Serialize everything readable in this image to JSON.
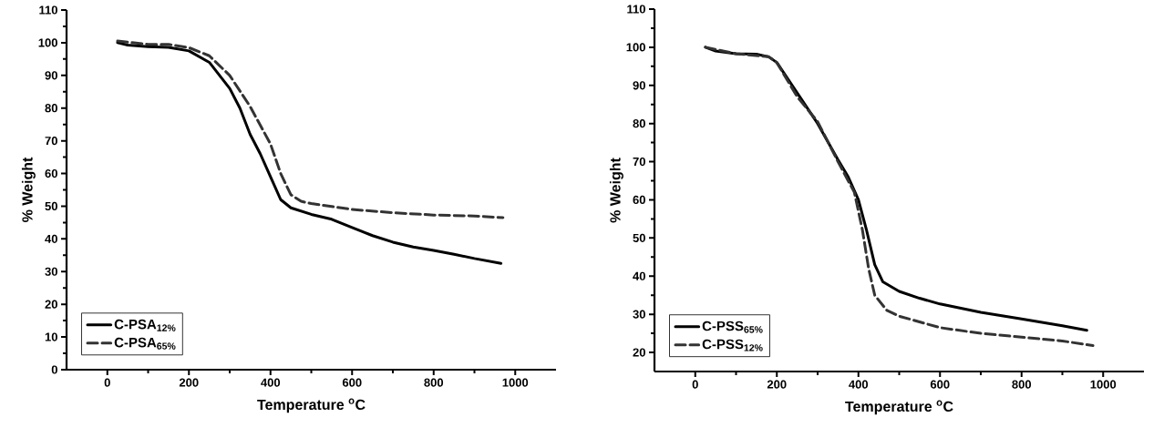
{
  "chart_data": [
    {
      "type": "line",
      "xlabel": "Temperature $^{o}$C",
      "ylabel": "% Weight",
      "xlim": [
        -100,
        1100
      ],
      "ylim": [
        0,
        110
      ],
      "xticks": [
        0,
        200,
        400,
        600,
        800,
        1000
      ],
      "yticks": [
        0,
        10,
        20,
        30,
        40,
        50,
        60,
        70,
        80,
        90,
        100,
        110
      ],
      "legend": "bottom left",
      "series": [
        {
          "name": "C-PSA$_{12%}$",
          "color": "#000000",
          "line_style": "solid",
          "x": [
            25,
            50,
            100,
            150,
            200,
            250,
            300,
            325,
            350,
            375,
            400,
            425,
            450,
            500,
            550,
            600,
            650,
            700,
            750,
            800,
            850,
            900,
            965
          ],
          "values": [
            100,
            99.3,
            98.8,
            98.6,
            97.5,
            94,
            86,
            80,
            72,
            66,
            59,
            52,
            49.5,
            47.5,
            46,
            43.5,
            41,
            39,
            37.5,
            36.5,
            35.3,
            34,
            32.5
          ]
        },
        {
          "name": "C-PSA$_{65%}$",
          "color": "#333333",
          "line_style": "dashed",
          "x": [
            25,
            100,
            150,
            200,
            250,
            300,
            350,
            400,
            425,
            450,
            475,
            500,
            600,
            700,
            800,
            900,
            970
          ],
          "values": [
            100.5,
            99.5,
            99.5,
            98.5,
            96,
            90,
            80.5,
            69,
            60,
            53.5,
            51.5,
            50.8,
            49,
            48,
            47.3,
            47,
            46.5
          ]
        }
      ]
    },
    {
      "type": "line",
      "xlabel": "Temperature $^{o}$C",
      "ylabel": "% Weight",
      "xlim": [
        -100,
        1100
      ],
      "ylim": [
        15,
        110
      ],
      "xticks": [
        0,
        200,
        400,
        600,
        800,
        1000
      ],
      "yticks": [
        20,
        30,
        40,
        50,
        60,
        70,
        80,
        90,
        100,
        110
      ],
      "legend": "bottom left",
      "series": [
        {
          "name": "C-PSS$_{65%}$",
          "color": "#000000",
          "line_style": "solid",
          "x": [
            25,
            50,
            100,
            150,
            180,
            200,
            250,
            300,
            350,
            375,
            400,
            420,
            440,
            460,
            500,
            550,
            600,
            700,
            800,
            900,
            960
          ],
          "values": [
            100,
            99,
            98.3,
            98.2,
            97.5,
            96,
            88,
            80,
            70.5,
            66,
            60,
            52,
            43,
            38.5,
            36,
            34.2,
            32.7,
            30.5,
            28.8,
            27,
            25.8
          ]
        },
        {
          "name": "C-PSS$_{12%}$",
          "color": "#333333",
          "line_style": "dashed",
          "x": [
            25,
            100,
            180,
            200,
            250,
            300,
            350,
            390,
            410,
            425,
            440,
            470,
            500,
            600,
            700,
            800,
            900,
            975
          ],
          "values": [
            100,
            98.3,
            97.5,
            96,
            87,
            80.5,
            70,
            62,
            52,
            42,
            35,
            31,
            29.5,
            26.5,
            25,
            24,
            23,
            21.8
          ]
        }
      ]
    }
  ]
}
